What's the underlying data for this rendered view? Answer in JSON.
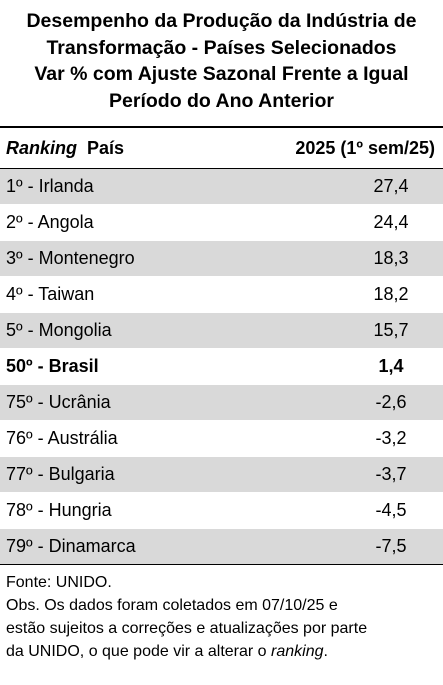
{
  "title_lines": [
    "Desempenho da Produção da Indústria de",
    "Transformação - Países Selecionados",
    "Var % com Ajuste Sazonal Frente a Igual",
    "Período do Ano Anterior"
  ],
  "header": {
    "ranking": "Ranking",
    "country": "País",
    "period": "2025 (1º sem/25)"
  },
  "chart_data": {
    "type": "table",
    "columns": [
      "Ranking País",
      "2025 (1º sem/25)"
    ],
    "rows": [
      {
        "label": "1º - Irlanda",
        "value": "27,4"
      },
      {
        "label": "2º - Angola",
        "value": "24,4"
      },
      {
        "label": "3º - Montenegro",
        "value": "18,3"
      },
      {
        "label": "4º - Taiwan",
        "value": "18,2"
      },
      {
        "label": "5º - Mongolia",
        "value": "15,7"
      },
      {
        "label": "50º - Brasil",
        "value": "1,4"
      },
      {
        "label": "75º - Ucrânia",
        "value": "-2,6"
      },
      {
        "label": "76º - Austrália",
        "value": "-3,2"
      },
      {
        "label": "77º - Bulgaria",
        "value": "-3,7"
      },
      {
        "label": "78º - Hungria",
        "value": "-4,5"
      },
      {
        "label": "79º - Dinamarca",
        "value": "-7,5"
      }
    ]
  },
  "notes": {
    "source": "Fonte: UNIDO.",
    "obs_line1": "Obs. Os dados foram coletados em 07/10/25 e",
    "obs_line2": "estão sujeitos a correções e atualizações por parte",
    "obs_line3_pre": "da UNIDO, o que pode vir a alterar o ",
    "obs_line3_it": "ranking",
    "obs_line3_post": "."
  },
  "colors": {
    "shade": "#d9d9d9",
    "border": "#000000"
  }
}
